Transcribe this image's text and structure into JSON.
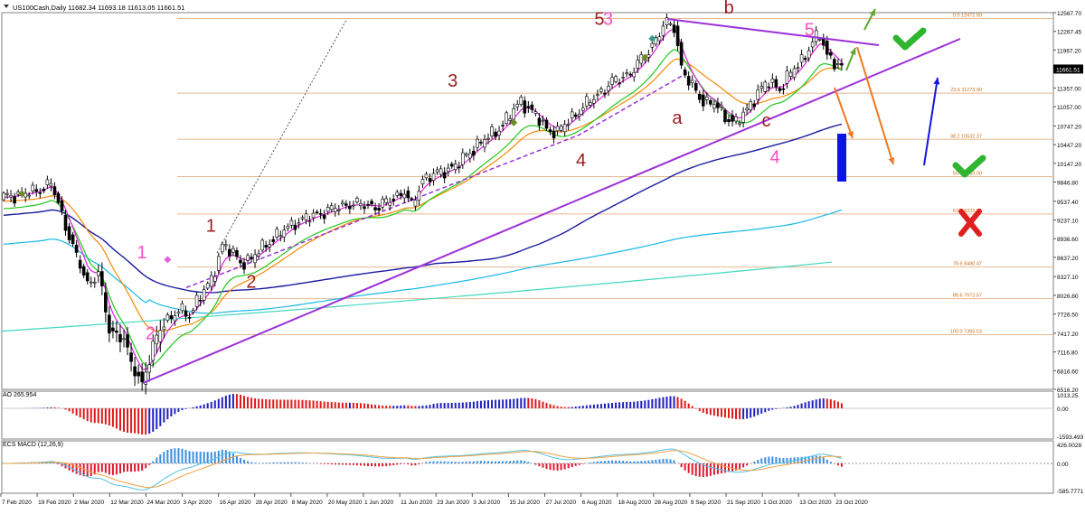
{
  "header": {
    "symbol_info": "US100Cash,Daily  11682.34 11693.18 11613.05 11661.51"
  },
  "indicators": {
    "ao_label": "AO 265.954",
    "macd_label": "ECS MACD (12,26,9)"
  },
  "colors": {
    "bull_candle": "#ffffff",
    "bear_candle": "#000000",
    "purple_trend": "#9b30d9",
    "magenta_ma": "#e020e0",
    "orange_ma": "#f58a07",
    "green_ma": "#22c81e",
    "navy_ma": "#1c1ca0",
    "lightblue_ma": "#18b8e8",
    "teal_ma": "#40d8c0",
    "fib_line": "#e8b890",
    "ao_up": "#2020c0",
    "ao_down": "#e01818",
    "wave_dark": "#9a1c1c",
    "wave_pink": "#ff4dc8",
    "check_green": "#2fb52f",
    "cross_red": "#e02020",
    "blue_box": "#0a14e6"
  },
  "chart_data": [
    {
      "type": "candlestick",
      "title": "US100Cash,Daily",
      "ylim": [
        6516.2,
        12567.7
      ],
      "y_ticks": [
        "12567.70",
        "12267.45",
        "11967.20",
        "11661.51",
        "11357.00",
        "11057.00",
        "10747.20",
        "10447.20",
        "10147.20",
        "9846.80",
        "9537.40",
        "9237.10",
        "8936.60",
        "8637.20",
        "8327.10",
        "8026.80",
        "7726.50",
        "7417.20",
        "7116.80",
        "6816.60",
        "6516.20"
      ],
      "x_ticks": [
        "7 Feb 2020",
        "19 Feb 2020",
        "2 Mar 2020",
        "12 Mar 2020",
        "24 Mar 2020",
        "3 Apr 2020",
        "16 Apr 2020",
        "28 Apr 2020",
        "8 May 2020",
        "20 May 2020",
        "1 Jun 2020",
        "11 Jun 2020",
        "23 Jun 2020",
        "3 Jul 2020",
        "15 Jul 2020",
        "27 Jul 2020",
        "6 Aug 2020",
        "18 Aug 2020",
        "28 Aug 2020",
        "9 Sep 2020",
        "21 Sep 2020",
        "1 Oct 2020",
        "13 Oct 2020",
        "23 Oct 2020"
      ],
      "current_price": 11661.51,
      "fibonacci": [
        {
          "label": "0.0 12472.50",
          "value": 12472.5
        },
        {
          "label": "23.6 11273.90",
          "value": 11273.9
        },
        {
          "label": "38.2 10532.37",
          "value": 10532.37
        },
        {
          "label": "50.0 9933.00",
          "value": 9933.0
        },
        {
          "label": "61.8 9333.76",
          "value": 9333.76
        },
        {
          "label": "78.6 8480.47",
          "value": 8480.47
        },
        {
          "label": "88.6 7972.57",
          "value": 7972.57
        },
        {
          "label": "100.0 7393.53",
          "value": 7393.53
        }
      ],
      "wave_labels": [
        {
          "text": "1",
          "color": "pink",
          "x": "27 Mar 2020",
          "y": 8620
        },
        {
          "text": "2",
          "color": "pink",
          "x": "30 Mar 2020",
          "y": 7320
        },
        {
          "text": "1",
          "color": "dark",
          "x": "20 Apr 2020",
          "y": 9050
        },
        {
          "text": "2",
          "color": "dark",
          "x": "4 May 2020",
          "y": 8150
        },
        {
          "text": "3",
          "color": "dark",
          "x": "13 Jul 2020",
          "y": 11380
        },
        {
          "text": "4",
          "color": "dark",
          "x": "6 Aug 2020",
          "y": 10100
        },
        {
          "text": "5",
          "color": "dark",
          "x": "2 Sep 2020",
          "y": 12370
        },
        {
          "text": "3",
          "color": "pink",
          "x": "5 Sep 2020",
          "y": 12370
        },
        {
          "text": "a",
          "color": "dark",
          "x": "29 Sep 2020",
          "y": 10780
        },
        {
          "text": "b",
          "color": "dark",
          "x": "17 Oct 2020",
          "y": 12550
        },
        {
          "text": "c",
          "color": "dark",
          "x": "30 Oct 2020",
          "y": 10740
        },
        {
          "text": "4",
          "color": "pink",
          "x": "2 Nov 2020",
          "y": 10150
        },
        {
          "text": "5",
          "color": "pink",
          "x": "14 Nov 2020",
          "y": 12200
        }
      ]
    },
    {
      "type": "bar",
      "title": "AO 265.954",
      "ylim": [
        -1593.493,
        1013.25
      ],
      "y_ticks": [
        "1013.25",
        "0.00",
        "-1593.493"
      ]
    },
    {
      "type": "bar",
      "title": "ECS MACD (12,26,9)",
      "ylim": [
        -585.7771,
        426.0028
      ],
      "y_ticks": [
        "426.0028",
        "0.00",
        "-585.7771"
      ]
    }
  ]
}
